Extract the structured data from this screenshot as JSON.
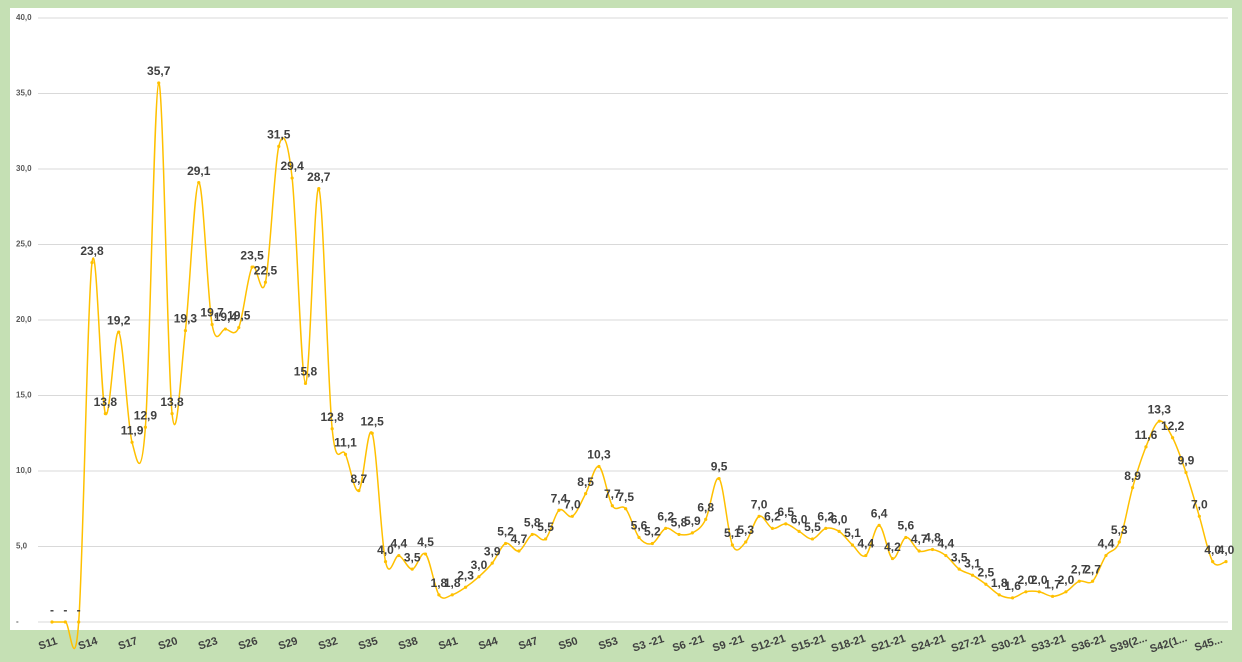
{
  "chart_data": {
    "type": "line",
    "categories": [
      "S11",
      null,
      null,
      "S14",
      null,
      null,
      "S17",
      null,
      null,
      "S20",
      null,
      null,
      "S23",
      null,
      null,
      "S26",
      null,
      null,
      "S29",
      null,
      null,
      "S32",
      null,
      null,
      "S35",
      null,
      null,
      "S38",
      null,
      null,
      "S41",
      null,
      null,
      "S44",
      null,
      null,
      "S47",
      null,
      null,
      "S50",
      null,
      null,
      "S53",
      null,
      null,
      "S3 -21",
      null,
      null,
      "S6 -21",
      null,
      null,
      "S9 -21",
      null,
      null,
      "S12-21",
      null,
      null,
      "S15-21",
      null,
      null,
      "S18-21",
      null,
      null,
      "S21-21",
      null,
      null,
      "S24-21",
      null,
      null,
      "S27-21",
      null,
      null,
      "S30-21",
      null,
      null,
      "S33-21",
      null,
      null,
      "S36-21",
      null,
      null,
      "S39(2...",
      null,
      null,
      "S42(1...",
      null,
      null,
      "S45...",
      null
    ],
    "values": [
      0,
      0,
      0,
      23.8,
      13.8,
      19.2,
      11.9,
      12.9,
      35.7,
      13.8,
      19.3,
      29.1,
      19.7,
      19.4,
      19.5,
      23.5,
      22.5,
      31.5,
      29.4,
      15.8,
      28.7,
      12.8,
      11.1,
      8.7,
      12.5,
      4.0,
      4.4,
      3.5,
      4.5,
      1.8,
      1.8,
      2.3,
      3.0,
      3.9,
      5.2,
      4.7,
      5.8,
      5.5,
      7.4,
      7.0,
      8.5,
      10.3,
      7.7,
      7.5,
      5.6,
      5.2,
      6.2,
      5.8,
      5.9,
      6.8,
      9.5,
      5.1,
      5.3,
      7.0,
      6.2,
      6.5,
      6.0,
      5.5,
      6.2,
      6.0,
      5.1,
      4.4,
      6.4,
      4.2,
      5.6,
      4.7,
      4.8,
      4.4,
      3.5,
      3.1,
      2.5,
      1.8,
      1.6,
      2.0,
      2.0,
      1.7,
      2.0,
      2.7,
      2.7,
      4.4,
      5.3,
      8.9,
      11.6,
      13.3,
      12.2,
      9.9,
      7.0,
      4.0,
      4.0
    ],
    "value_labels": [
      "-",
      "-",
      "-",
      "23,8",
      "13,8",
      "19,2",
      "11,9",
      "12,9",
      "35,7",
      "13,8",
      "19,3",
      "29,1",
      "19,7",
      "19,4",
      "19,5",
      "23,5",
      "22,5",
      "31,5",
      "29,4",
      "15,8",
      "28,7",
      "12,8",
      "11,1",
      "8,7",
      "12,5",
      "4,0",
      "4,4",
      "3,5",
      "4,5",
      "1,8",
      "1,8",
      "2,3",
      "3,0",
      "3,9",
      "5,2",
      "4,7",
      "5,8",
      "5,5",
      "7,4",
      "7,0",
      "8,5",
      "10,3",
      "7,7",
      "7,5",
      "5,6",
      "5,2",
      "6,2",
      "5,8",
      "5,9",
      "6,8",
      "9,5",
      "5,1",
      "5,3",
      "7,0",
      "6,2",
      "6,5",
      "6,0",
      "5,5",
      "6,2",
      "6,0",
      "5,1",
      "4,4",
      "6,4",
      "4,2",
      "5,6",
      "4,7",
      "4,8",
      "4,4",
      "3,5",
      "3,1",
      "2,5",
      "1,8",
      "1,6",
      "2,0",
      "2,0",
      "1,7",
      "2,0",
      "2,7",
      "2,7",
      "4,4",
      "5,3",
      "8,9",
      "11,6",
      "13,3",
      "12,2",
      "9,9",
      "7,0",
      "4,0",
      "4,0"
    ],
    "color": "#ffc000",
    "ylim": [
      0,
      40
    ],
    "yticks": [
      {
        "value": 0,
        "label": "-"
      },
      {
        "value": 5,
        "label": "5,0"
      },
      {
        "value": 10,
        "label": "10,0"
      },
      {
        "value": 15,
        "label": "15,0"
      },
      {
        "value": 20,
        "label": "20,0"
      },
      {
        "value": 25,
        "label": "25,0"
      },
      {
        "value": 30,
        "label": "30,0"
      },
      {
        "value": 35,
        "label": "35,0"
      },
      {
        "value": 40,
        "label": "40,0"
      }
    ],
    "grid": true
  }
}
